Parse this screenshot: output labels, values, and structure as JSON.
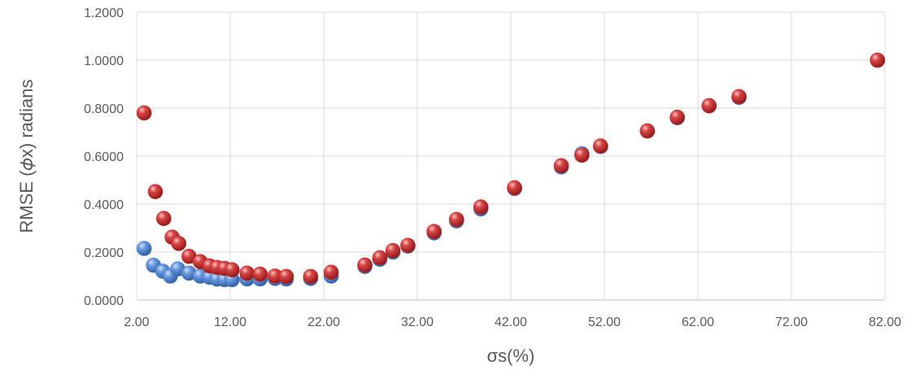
{
  "chart_data": {
    "type": "scatter",
    "title": "",
    "xlabel": "σs(%)",
    "ylabel": "RMSE (𝜙x) radians",
    "xlim": [
      2,
      82
    ],
    "ylim": [
      0,
      1.2
    ],
    "x_ticks": [
      "2.00",
      "12.00",
      "22.00",
      "32.00",
      "42.00",
      "52.00",
      "62.00",
      "72.00",
      "82.00"
    ],
    "y_ticks": [
      "0.0000",
      "0.2000",
      "0.4000",
      "0.6000",
      "0.8000",
      "1.0000",
      "1.2000"
    ],
    "grid": "vertical-and-horizontal",
    "legend": "none",
    "series": [
      {
        "color": "#4a7fc8",
        "points": [
          [
            2.8,
            0.215
          ],
          [
            3.8,
            0.145
          ],
          [
            4.8,
            0.12
          ],
          [
            5.6,
            0.1
          ],
          [
            6.4,
            0.13
          ],
          [
            7.6,
            0.112
          ],
          [
            8.8,
            0.1
          ],
          [
            9.8,
            0.095
          ],
          [
            10.6,
            0.087
          ],
          [
            11.4,
            0.085
          ],
          [
            12.2,
            0.085
          ],
          [
            13.8,
            0.088
          ],
          [
            15.2,
            0.088
          ],
          [
            16.8,
            0.09
          ],
          [
            18.0,
            0.088
          ],
          [
            20.6,
            0.09
          ],
          [
            22.8,
            0.1
          ],
          [
            26.4,
            0.14
          ],
          [
            28.0,
            0.17
          ],
          [
            29.4,
            0.2
          ],
          [
            31.0,
            0.225
          ],
          [
            33.8,
            0.28
          ],
          [
            36.2,
            0.33
          ],
          [
            38.8,
            0.38
          ],
          [
            42.4,
            0.465
          ],
          [
            47.4,
            0.555
          ],
          [
            49.6,
            0.61
          ],
          [
            51.6,
            0.64
          ],
          [
            56.6,
            0.705
          ],
          [
            59.8,
            0.76
          ],
          [
            63.2,
            0.81
          ],
          [
            66.4,
            0.845
          ],
          [
            81.2,
            1.0
          ]
        ]
      },
      {
        "color": "#c62b2b",
        "points": [
          [
            2.8,
            0.78
          ],
          [
            4.0,
            0.452
          ],
          [
            4.9,
            0.34
          ],
          [
            5.8,
            0.262
          ],
          [
            6.5,
            0.236
          ],
          [
            7.6,
            0.182
          ],
          [
            8.8,
            0.16
          ],
          [
            9.8,
            0.142
          ],
          [
            10.6,
            0.136
          ],
          [
            11.4,
            0.132
          ],
          [
            12.2,
            0.126
          ],
          [
            13.8,
            0.112
          ],
          [
            15.2,
            0.108
          ],
          [
            16.8,
            0.1
          ],
          [
            18.0,
            0.098
          ],
          [
            20.6,
            0.098
          ],
          [
            22.8,
            0.116
          ],
          [
            26.4,
            0.146
          ],
          [
            28.0,
            0.176
          ],
          [
            29.4,
            0.206
          ],
          [
            31.0,
            0.228
          ],
          [
            33.8,
            0.286
          ],
          [
            36.2,
            0.336
          ],
          [
            38.8,
            0.388
          ],
          [
            42.4,
            0.468
          ],
          [
            47.4,
            0.56
          ],
          [
            49.6,
            0.604
          ],
          [
            51.6,
            0.642
          ],
          [
            56.6,
            0.705
          ],
          [
            59.8,
            0.762
          ],
          [
            63.2,
            0.81
          ],
          [
            66.4,
            0.848
          ],
          [
            81.2,
            1.0
          ]
        ]
      }
    ]
  }
}
